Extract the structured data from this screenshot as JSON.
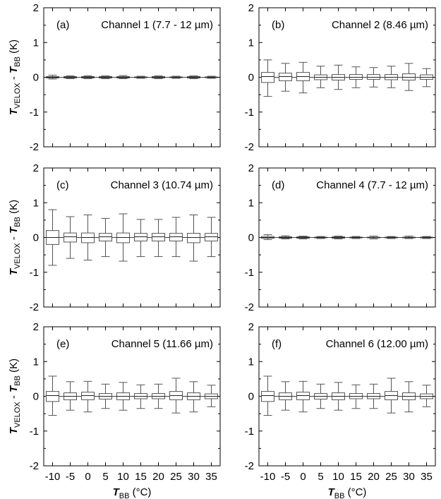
{
  "figure": {
    "ylabel": {
      "main": "T",
      "sub1": "VELOX",
      "mid": " - ",
      "main2": "T",
      "sub2": "BB",
      "unit": " (K)"
    },
    "xlabel": {
      "main": "T",
      "sub": "BB",
      "unit": " (°C)"
    }
  },
  "chart_data": [
    {
      "type": "box",
      "panel_label": "(a)",
      "title": "Channel 1 (7.7 - 12 µm)",
      "categories": [
        "-10",
        "-5",
        "0",
        "5",
        "10",
        "15",
        "20",
        "25",
        "30",
        "35"
      ],
      "ylim": [
        -2,
        2
      ],
      "yticks": [
        "-2",
        "-1",
        "0",
        "1",
        "2"
      ],
      "boxes": [
        {
          "x": -10,
          "min": -0.05,
          "q1": -0.02,
          "median": 0.0,
          "q3": 0.02,
          "max": 0.06
        },
        {
          "x": -5,
          "min": -0.04,
          "q1": -0.02,
          "median": 0.0,
          "q3": 0.02,
          "max": 0.04
        },
        {
          "x": 0,
          "min": -0.04,
          "q1": -0.02,
          "median": 0.0,
          "q3": 0.02,
          "max": 0.04
        },
        {
          "x": 5,
          "min": -0.04,
          "q1": -0.02,
          "median": 0.0,
          "q3": 0.02,
          "max": 0.04
        },
        {
          "x": 10,
          "min": -0.04,
          "q1": -0.02,
          "median": 0.0,
          "q3": 0.02,
          "max": 0.05
        },
        {
          "x": 15,
          "min": -0.03,
          "q1": -0.01,
          "median": 0.0,
          "q3": 0.01,
          "max": 0.03
        },
        {
          "x": 20,
          "min": -0.04,
          "q1": -0.02,
          "median": 0.0,
          "q3": 0.02,
          "max": 0.04
        },
        {
          "x": 25,
          "min": -0.03,
          "q1": -0.01,
          "median": 0.0,
          "q3": 0.01,
          "max": 0.03
        },
        {
          "x": 30,
          "min": -0.04,
          "q1": -0.02,
          "median": 0.0,
          "q3": 0.02,
          "max": 0.04
        },
        {
          "x": 35,
          "min": -0.03,
          "q1": -0.01,
          "median": 0.0,
          "q3": 0.01,
          "max": 0.03
        }
      ]
    },
    {
      "type": "box",
      "panel_label": "(b)",
      "title": "Channel 2 (8.46 µm)",
      "categories": [
        "-10",
        "-5",
        "0",
        "5",
        "10",
        "15",
        "20",
        "25",
        "30",
        "35"
      ],
      "ylim": [
        -2,
        2
      ],
      "yticks": [
        "-2",
        "-1",
        "0",
        "1",
        "2"
      ],
      "boxes": [
        {
          "x": -10,
          "min": -0.55,
          "q1": -0.15,
          "median": 0.02,
          "q3": 0.14,
          "max": 0.5
        },
        {
          "x": -5,
          "min": -0.4,
          "q1": -0.1,
          "median": 0.02,
          "q3": 0.12,
          "max": 0.4
        },
        {
          "x": 0,
          "min": -0.45,
          "q1": -0.1,
          "median": 0.02,
          "q3": 0.14,
          "max": 0.43
        },
        {
          "x": 5,
          "min": -0.3,
          "q1": -0.07,
          "median": 0.0,
          "q3": 0.07,
          "max": 0.32
        },
        {
          "x": 10,
          "min": -0.35,
          "q1": -0.08,
          "median": 0.0,
          "q3": 0.08,
          "max": 0.35
        },
        {
          "x": 15,
          "min": -0.3,
          "q1": -0.06,
          "median": 0.0,
          "q3": 0.08,
          "max": 0.3
        },
        {
          "x": 20,
          "min": -0.28,
          "q1": -0.06,
          "median": 0.0,
          "q3": 0.08,
          "max": 0.28
        },
        {
          "x": 25,
          "min": -0.3,
          "q1": -0.07,
          "median": 0.0,
          "q3": 0.08,
          "max": 0.32
        },
        {
          "x": 30,
          "min": -0.38,
          "q1": -0.08,
          "median": 0.0,
          "q3": 0.1,
          "max": 0.4
        },
        {
          "x": 35,
          "min": -0.27,
          "q1": -0.06,
          "median": 0.0,
          "q3": 0.07,
          "max": 0.25
        }
      ]
    },
    {
      "type": "box",
      "panel_label": "(c)",
      "title": "Channel 3 (10.74 µm)",
      "categories": [
        "-10",
        "-5",
        "0",
        "5",
        "10",
        "15",
        "20",
        "25",
        "30",
        "35"
      ],
      "ylim": [
        -2,
        2
      ],
      "yticks": [
        "-2",
        "-1",
        "0",
        "1",
        "2"
      ],
      "boxes": [
        {
          "x": -10,
          "min": -0.8,
          "q1": -0.2,
          "median": 0.0,
          "q3": 0.2,
          "max": 0.8
        },
        {
          "x": -5,
          "min": -0.6,
          "q1": -0.13,
          "median": 0.02,
          "q3": 0.13,
          "max": 0.6
        },
        {
          "x": 0,
          "min": -0.65,
          "q1": -0.15,
          "median": 0.0,
          "q3": 0.13,
          "max": 0.65
        },
        {
          "x": 5,
          "min": -0.55,
          "q1": -0.1,
          "median": 0.02,
          "q3": 0.12,
          "max": 0.55
        },
        {
          "x": 10,
          "min": -0.68,
          "q1": -0.15,
          "median": 0.0,
          "q3": 0.13,
          "max": 0.68
        },
        {
          "x": 15,
          "min": -0.55,
          "q1": -0.1,
          "median": 0.02,
          "q3": 0.12,
          "max": 0.52
        },
        {
          "x": 20,
          "min": -0.55,
          "q1": -0.1,
          "median": 0.02,
          "q3": 0.12,
          "max": 0.52
        },
        {
          "x": 25,
          "min": -0.55,
          "q1": -0.1,
          "median": 0.02,
          "q3": 0.12,
          "max": 0.58
        },
        {
          "x": 30,
          "min": -0.68,
          "q1": -0.15,
          "median": 0.0,
          "q3": 0.12,
          "max": 0.65
        },
        {
          "x": 35,
          "min": -0.55,
          "q1": -0.1,
          "median": 0.02,
          "q3": 0.12,
          "max": 0.58
        }
      ]
    },
    {
      "type": "box",
      "panel_label": "(d)",
      "title": "Channel 4 (7.7 - 12 µm)",
      "categories": [
        "-10",
        "-5",
        "0",
        "5",
        "10",
        "15",
        "20",
        "25",
        "30",
        "35"
      ],
      "ylim": [
        -2,
        2
      ],
      "yticks": [
        "-2",
        "-1",
        "0",
        "1",
        "2"
      ],
      "boxes": [
        {
          "x": -10,
          "min": -0.06,
          "q1": -0.02,
          "median": 0.0,
          "q3": 0.03,
          "max": 0.08
        },
        {
          "x": -5,
          "min": -0.04,
          "q1": -0.02,
          "median": 0.0,
          "q3": 0.02,
          "max": 0.05
        },
        {
          "x": 0,
          "min": -0.04,
          "q1": -0.02,
          "median": 0.0,
          "q3": 0.02,
          "max": 0.04
        },
        {
          "x": 5,
          "min": -0.03,
          "q1": -0.01,
          "median": 0.0,
          "q3": 0.01,
          "max": 0.03
        },
        {
          "x": 10,
          "min": -0.04,
          "q1": -0.02,
          "median": 0.0,
          "q3": 0.02,
          "max": 0.04
        },
        {
          "x": 15,
          "min": -0.03,
          "q1": -0.01,
          "median": 0.0,
          "q3": 0.01,
          "max": 0.03
        },
        {
          "x": 20,
          "min": -0.04,
          "q1": -0.01,
          "median": 0.0,
          "q3": 0.01,
          "max": 0.04
        },
        {
          "x": 25,
          "min": -0.03,
          "q1": -0.01,
          "median": 0.0,
          "q3": 0.01,
          "max": 0.03
        },
        {
          "x": 30,
          "min": -0.03,
          "q1": -0.01,
          "median": 0.0,
          "q3": 0.01,
          "max": 0.04
        },
        {
          "x": 35,
          "min": -0.03,
          "q1": -0.01,
          "median": 0.0,
          "q3": 0.01,
          "max": 0.03
        }
      ]
    },
    {
      "type": "box",
      "panel_label": "(e)",
      "title": "Channel 5 (11.66 µm)",
      "categories": [
        "-10",
        "-5",
        "0",
        "5",
        "10",
        "15",
        "20",
        "25",
        "30",
        "35"
      ],
      "ylim": [
        -2,
        2
      ],
      "yticks": [
        "-2",
        "-1",
        "0",
        "1",
        "2"
      ],
      "boxes": [
        {
          "x": -10,
          "min": -0.55,
          "q1": -0.15,
          "median": 0.02,
          "q3": 0.14,
          "max": 0.58
        },
        {
          "x": -5,
          "min": -0.4,
          "q1": -0.1,
          "median": 0.0,
          "q3": 0.1,
          "max": 0.42
        },
        {
          "x": 0,
          "min": -0.45,
          "q1": -0.1,
          "median": 0.02,
          "q3": 0.12,
          "max": 0.43
        },
        {
          "x": 5,
          "min": -0.35,
          "q1": -0.08,
          "median": 0.0,
          "q3": 0.08,
          "max": 0.35
        },
        {
          "x": 10,
          "min": -0.4,
          "q1": -0.1,
          "median": 0.0,
          "q3": 0.1,
          "max": 0.4
        },
        {
          "x": 15,
          "min": -0.35,
          "q1": -0.07,
          "median": 0.0,
          "q3": 0.08,
          "max": 0.33
        },
        {
          "x": 20,
          "min": -0.35,
          "q1": -0.07,
          "median": 0.0,
          "q3": 0.08,
          "max": 0.35
        },
        {
          "x": 25,
          "min": -0.48,
          "q1": -0.1,
          "median": 0.02,
          "q3": 0.14,
          "max": 0.52
        },
        {
          "x": 30,
          "min": -0.45,
          "q1": -0.1,
          "median": 0.0,
          "q3": 0.1,
          "max": 0.42
        },
        {
          "x": 35,
          "min": -0.3,
          "q1": -0.07,
          "median": 0.0,
          "q3": 0.07,
          "max": 0.32
        }
      ]
    },
    {
      "type": "box",
      "panel_label": "(f)",
      "title": "Channel 6 (12.00 µm)",
      "categories": [
        "-10",
        "-5",
        "0",
        "5",
        "10",
        "15",
        "20",
        "25",
        "30",
        "35"
      ],
      "ylim": [
        -2,
        2
      ],
      "yticks": [
        "-2",
        "-1",
        "0",
        "1",
        "2"
      ],
      "boxes": [
        {
          "x": -10,
          "min": -0.55,
          "q1": -0.15,
          "median": 0.02,
          "q3": 0.14,
          "max": 0.58
        },
        {
          "x": -5,
          "min": -0.4,
          "q1": -0.1,
          "median": 0.0,
          "q3": 0.1,
          "max": 0.42
        },
        {
          "x": 0,
          "min": -0.45,
          "q1": -0.1,
          "median": 0.02,
          "q3": 0.12,
          "max": 0.43
        },
        {
          "x": 5,
          "min": -0.35,
          "q1": -0.08,
          "median": 0.0,
          "q3": 0.08,
          "max": 0.35
        },
        {
          "x": 10,
          "min": -0.4,
          "q1": -0.1,
          "median": 0.0,
          "q3": 0.1,
          "max": 0.4
        },
        {
          "x": 15,
          "min": -0.35,
          "q1": -0.07,
          "median": 0.0,
          "q3": 0.08,
          "max": 0.33
        },
        {
          "x": 20,
          "min": -0.35,
          "q1": -0.07,
          "median": 0.0,
          "q3": 0.08,
          "max": 0.35
        },
        {
          "x": 25,
          "min": -0.48,
          "q1": -0.1,
          "median": 0.02,
          "q3": 0.14,
          "max": 0.52
        },
        {
          "x": 30,
          "min": -0.45,
          "q1": -0.1,
          "median": 0.0,
          "q3": 0.1,
          "max": 0.42
        },
        {
          "x": 35,
          "min": -0.3,
          "q1": -0.07,
          "median": 0.0,
          "q3": 0.07,
          "max": 0.32
        }
      ]
    }
  ]
}
